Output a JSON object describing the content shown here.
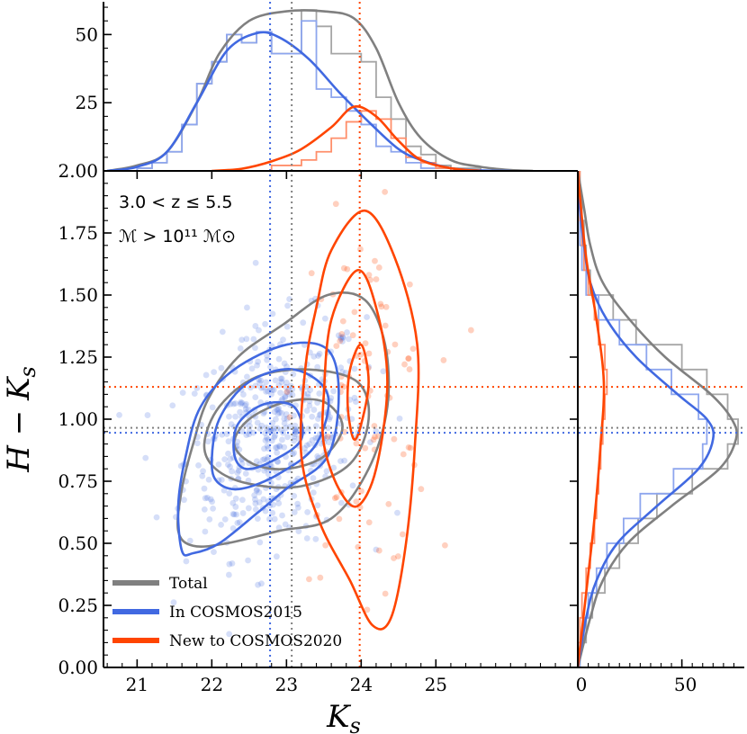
{
  "chart_data": {
    "type": "scatter",
    "xlabel": "K_s",
    "ylabel": "H − K_s",
    "xlim": [
      20.55,
      26.9
    ],
    "ylim": [
      0.0,
      2.0
    ],
    "xticks": [
      "21",
      "22",
      "23",
      "24",
      "25"
    ],
    "xticks_values": [
      21,
      22,
      23,
      24,
      25
    ],
    "yticks": [
      "0.00",
      "0.25",
      "0.50",
      "0.75",
      "1.00",
      "1.25",
      "1.50",
      "1.75",
      "2.00"
    ],
    "yticks_values": [
      0.0,
      0.25,
      0.5,
      0.75,
      1.0,
      1.25,
      1.5,
      1.75,
      2.0
    ],
    "annotation_line1": "3.0 < z ≤ 5.5",
    "annotation_line2": "ℳ > 10¹¹ ℳ⊙",
    "top_panel": {
      "ylim": [
        0,
        62
      ],
      "yticks": [
        "25",
        "50"
      ],
      "yticks_values": [
        25,
        50
      ]
    },
    "right_panel": {
      "xlim": [
        0,
        80
      ],
      "xticks": [
        "0",
        "50"
      ],
      "xticks_values": [
        0,
        50
      ]
    },
    "legend": {
      "placement": "lower-left",
      "entries": [
        {
          "label": "Total",
          "color": "#808080"
        },
        {
          "label": "In COSMOS2015",
          "color": "#4169e1"
        },
        {
          "label": "New to COSMOS2020",
          "color": "#ff4500"
        }
      ]
    },
    "median_lines": {
      "total": {
        "x": 23.07,
        "y": 0.965
      },
      "cosmos2015": {
        "x": 22.78,
        "y": 0.945
      },
      "cosmos2020": {
        "x": 23.98,
        "y": 1.13
      }
    },
    "series": [
      {
        "name": "Total",
        "color": "#808080",
        "hist_x_bins": [
          20.6,
          20.8,
          21.0,
          21.2,
          21.4,
          21.6,
          21.8,
          22.0,
          22.2,
          22.4,
          22.6,
          22.8,
          23.0,
          23.2,
          23.4,
          23.6,
          23.8,
          24.0,
          24.2,
          24.4,
          24.6,
          24.8,
          25.0,
          25.2,
          25.4,
          25.6,
          25.8
        ],
        "hist_x_counts": [
          0,
          0,
          1,
          3,
          7,
          17,
          32,
          40,
          50,
          47,
          51,
          43,
          43,
          59,
          53,
          43,
          43,
          40,
          27,
          19,
          9,
          6,
          2,
          1,
          1,
          0
        ],
        "kde_x": [
          [
            20.6,
            0
          ],
          [
            21.0,
            2
          ],
          [
            21.4,
            7
          ],
          [
            21.8,
            25
          ],
          [
            22.1,
            43
          ],
          [
            22.5,
            55
          ],
          [
            23.0,
            58.5
          ],
          [
            23.5,
            58.5
          ],
          [
            23.9,
            56
          ],
          [
            24.2,
            45
          ],
          [
            24.5,
            25
          ],
          [
            24.8,
            12
          ],
          [
            25.2,
            4
          ],
          [
            25.6,
            1.5
          ],
          [
            26.0,
            0.3
          ],
          [
            26.3,
            0
          ]
        ],
        "hist_y_bins": [
          0.0,
          0.1,
          0.2,
          0.3,
          0.4,
          0.5,
          0.6,
          0.7,
          0.8,
          0.9,
          1.0,
          1.1,
          1.2,
          1.3,
          1.4,
          1.5,
          1.6,
          1.7,
          1.8,
          1.9,
          2.0
        ],
        "hist_y_counts": [
          1,
          4,
          7,
          13,
          20,
          29,
          38,
          55,
          72,
          77,
          72,
          62,
          50,
          28,
          17,
          6,
          4,
          3,
          2,
          1
        ],
        "kde_y": [
          [
            0.0,
            0
          ],
          [
            0.2,
            6
          ],
          [
            0.35,
            12
          ],
          [
            0.5,
            24
          ],
          [
            0.65,
            45
          ],
          [
            0.8,
            68
          ],
          [
            0.92,
            76
          ],
          [
            1.0,
            74
          ],
          [
            1.1,
            64
          ],
          [
            1.25,
            42
          ],
          [
            1.4,
            25
          ],
          [
            1.55,
            12
          ],
          [
            1.7,
            6
          ],
          [
            1.85,
            3
          ],
          [
            2.0,
            0
          ]
        ],
        "contours": [
          [
            [
              21.55,
              0.55
            ],
            [
              21.6,
              0.72
            ],
            [
              21.75,
              0.9
            ],
            [
              21.95,
              1.08
            ],
            [
              22.35,
              1.25
            ],
            [
              22.95,
              1.38
            ],
            [
              23.55,
              1.5
            ],
            [
              24.05,
              1.48
            ],
            [
              24.32,
              1.3
            ],
            [
              24.35,
              1.05
            ],
            [
              24.1,
              0.8
            ],
            [
              23.6,
              0.6
            ],
            [
              22.9,
              0.55
            ],
            [
              22.2,
              0.5
            ],
            [
              21.75,
              0.49
            ]
          ],
          [
            [
              21.9,
              0.9
            ],
            [
              22.1,
              1.05
            ],
            [
              22.6,
              1.17
            ],
            [
              23.3,
              1.2
            ],
            [
              23.95,
              1.15
            ],
            [
              24.1,
              1.0
            ],
            [
              23.85,
              0.82
            ],
            [
              23.2,
              0.73
            ],
            [
              22.5,
              0.74
            ],
            [
              22.05,
              0.8
            ]
          ],
          [
            [
              22.3,
              0.9
            ],
            [
              22.5,
              1.0
            ],
            [
              23.0,
              1.07
            ],
            [
              23.5,
              1.07
            ],
            [
              23.75,
              0.97
            ],
            [
              23.5,
              0.85
            ],
            [
              23.0,
              0.8
            ],
            [
              22.55,
              0.82
            ]
          ]
        ]
      },
      {
        "name": "In COSMOS2015",
        "color": "#4169e1",
        "hist_x_bins": [
          20.6,
          20.8,
          21.0,
          21.2,
          21.4,
          21.6,
          21.8,
          22.0,
          22.2,
          22.4,
          22.6,
          22.8,
          23.0,
          23.2,
          23.4,
          23.6,
          23.8,
          24.0,
          24.2,
          24.4,
          24.6,
          24.8,
          25.0,
          25.2,
          25.4
        ],
        "hist_x_counts": [
          0,
          0,
          1,
          3,
          7,
          17,
          32,
          40,
          50,
          47,
          51,
          43,
          43,
          55,
          30,
          27,
          22,
          17,
          9,
          7,
          3,
          1,
          1,
          0
        ],
        "kde_x": [
          [
            20.6,
            0
          ],
          [
            21.0,
            1.5
          ],
          [
            21.4,
            7
          ],
          [
            21.8,
            25
          ],
          [
            22.2,
            44
          ],
          [
            22.6,
            50.5
          ],
          [
            22.9,
            49
          ],
          [
            23.3,
            41
          ],
          [
            23.7,
            29
          ],
          [
            24.1,
            18
          ],
          [
            24.5,
            8
          ],
          [
            24.8,
            4
          ],
          [
            25.2,
            1
          ],
          [
            25.6,
            0.2
          ],
          [
            26.0,
            0
          ]
        ],
        "hist_y_bins": [
          0.0,
          0.1,
          0.2,
          0.3,
          0.4,
          0.5,
          0.6,
          0.7,
          0.8,
          0.9,
          1.0,
          1.1,
          1.2,
          1.3,
          1.4,
          1.5,
          1.6,
          1.7,
          1.8,
          1.9,
          2.0
        ],
        "hist_y_counts": [
          1,
          3,
          5,
          9,
          14,
          22,
          30,
          46,
          60,
          62,
          58,
          45,
          33,
          20,
          10,
          4,
          2,
          1,
          1,
          0
        ],
        "kde_y": [
          [
            0.0,
            0
          ],
          [
            0.2,
            4
          ],
          [
            0.35,
            9
          ],
          [
            0.5,
            19
          ],
          [
            0.65,
            38
          ],
          [
            0.8,
            58
          ],
          [
            0.92,
            65
          ],
          [
            1.0,
            62
          ],
          [
            1.1,
            48
          ],
          [
            1.25,
            28
          ],
          [
            1.4,
            14
          ],
          [
            1.55,
            6
          ],
          [
            1.7,
            3
          ],
          [
            1.85,
            1
          ],
          [
            2.0,
            0
          ]
        ],
        "contours": [
          [
            [
              21.6,
              0.47
            ],
            [
              21.55,
              0.65
            ],
            [
              21.65,
              0.85
            ],
            [
              21.85,
              1.05
            ],
            [
              22.3,
              1.2
            ],
            [
              23.0,
              1.3
            ],
            [
              23.55,
              1.28
            ],
            [
              23.7,
              1.1
            ],
            [
              23.55,
              0.85
            ],
            [
              23.0,
              0.72
            ],
            [
              22.6,
              0.62
            ],
            [
              22.1,
              0.5
            ],
            [
              21.75,
              0.46
            ]
          ],
          [
            [
              22.0,
              0.82
            ],
            [
              22.1,
              1.0
            ],
            [
              22.5,
              1.15
            ],
            [
              23.1,
              1.2
            ],
            [
              23.55,
              1.1
            ],
            [
              23.4,
              0.9
            ],
            [
              22.9,
              0.78
            ],
            [
              22.4,
              0.72
            ],
            [
              22.1,
              0.74
            ]
          ],
          [
            [
              22.3,
              0.86
            ],
            [
              22.35,
              0.98
            ],
            [
              22.7,
              1.06
            ],
            [
              23.1,
              1.05
            ],
            [
              23.2,
              0.92
            ],
            [
              22.8,
              0.83
            ],
            [
              22.45,
              0.8
            ]
          ]
        ]
      },
      {
        "name": "New to COSMOS2020",
        "color": "#ff4500",
        "hist_x_bins": [
          22.6,
          22.8,
          23.0,
          23.2,
          23.4,
          23.6,
          23.8,
          24.0,
          24.2,
          24.4,
          24.6,
          24.8,
          25.0,
          25.2,
          25.4
        ],
        "hist_x_counts": [
          0,
          2,
          2,
          4,
          7,
          12,
          18,
          22,
          19,
          12,
          5,
          3,
          1,
          0
        ],
        "kde_x": [
          [
            22.0,
            0
          ],
          [
            22.4,
            0.8
          ],
          [
            22.8,
            3.5
          ],
          [
            23.2,
            8
          ],
          [
            23.6,
            16
          ],
          [
            23.9,
            23.5
          ],
          [
            24.2,
            20
          ],
          [
            24.5,
            11
          ],
          [
            24.8,
            4
          ],
          [
            25.2,
            1
          ],
          [
            25.6,
            0
          ]
        ],
        "hist_y_bins": [
          0.0,
          0.1,
          0.2,
          0.3,
          0.4,
          0.5,
          0.6,
          0.7,
          0.8,
          0.9,
          1.0,
          1.1,
          1.2,
          1.3,
          1.4,
          1.5,
          1.6,
          1.7,
          1.8,
          1.9,
          2.0
        ],
        "hist_y_counts": [
          0,
          1,
          2,
          4,
          6,
          8,
          9,
          10,
          11,
          12,
          13,
          14,
          13,
          10,
          8,
          5,
          3,
          2,
          1,
          1
        ],
        "kde_y": [
          [
            0.0,
            0
          ],
          [
            0.3,
            4
          ],
          [
            0.6,
            8
          ],
          [
            0.9,
            11
          ],
          [
            1.15,
            12.5
          ],
          [
            1.4,
            9
          ],
          [
            1.65,
            4
          ],
          [
            1.9,
            1
          ],
          [
            2.0,
            0
          ]
        ],
        "contours": [
          [
            [
              23.6,
              1.68
            ],
            [
              24.05,
              1.84
            ],
            [
              24.45,
              1.65
            ],
            [
              24.75,
              1.3
            ],
            [
              24.72,
              0.9
            ],
            [
              24.6,
              0.5
            ],
            [
              24.4,
              0.2
            ],
            [
              24.15,
              0.17
            ],
            [
              23.85,
              0.35
            ],
            [
              23.45,
              0.58
            ],
            [
              23.2,
              0.85
            ],
            [
              23.25,
              1.2
            ],
            [
              23.4,
              1.45
            ]
          ],
          [
            [
              23.5,
              1.1
            ],
            [
              23.6,
              1.4
            ],
            [
              23.95,
              1.6
            ],
            [
              24.2,
              1.45
            ],
            [
              24.35,
              1.15
            ],
            [
              24.2,
              0.8
            ],
            [
              23.95,
              0.65
            ],
            [
              23.7,
              0.72
            ],
            [
              23.5,
              0.9
            ]
          ],
          [
            [
              23.82,
              1.05
            ],
            [
              23.85,
              1.2
            ],
            [
              24.0,
              1.3
            ],
            [
              24.1,
              1.15
            ],
            [
              24.0,
              0.98
            ],
            [
              23.9,
              0.92
            ]
          ]
        ]
      }
    ],
    "scatter_points": {
      "COSMOS2015": {
        "color": "#4169e1",
        "count": 480
      },
      "COSMOS2020": {
        "color": "#ff4500",
        "count": 90
      }
    }
  }
}
